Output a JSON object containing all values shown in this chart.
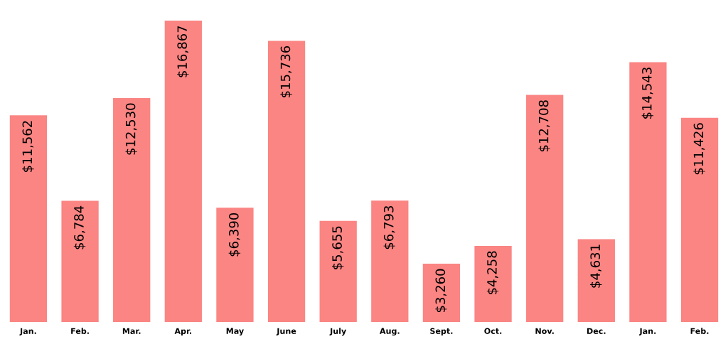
{
  "chart_data": {
    "type": "bar",
    "categories": [
      "Jan.",
      "Feb.",
      "Mar.",
      "Apr.",
      "May",
      "June",
      "July",
      "Aug.",
      "Sept.",
      "Oct.",
      "Nov.",
      "Dec.",
      "Jan.",
      "Feb."
    ],
    "values": [
      11562,
      6784,
      12530,
      16867,
      6390,
      15736,
      5655,
      6793,
      3260,
      4258,
      12708,
      4631,
      14543,
      11426
    ],
    "value_labels": [
      "$11,562",
      "$6,784",
      "$12,530",
      "$16,867",
      "$6,390",
      "$15,736",
      "$5,655",
      "$6,793",
      "$3,260",
      "$4,258",
      "$12,708",
      "$4,631",
      "$14,543",
      "$11,426"
    ],
    "color": "#fa8583",
    "grid": false,
    "legend": false
  }
}
